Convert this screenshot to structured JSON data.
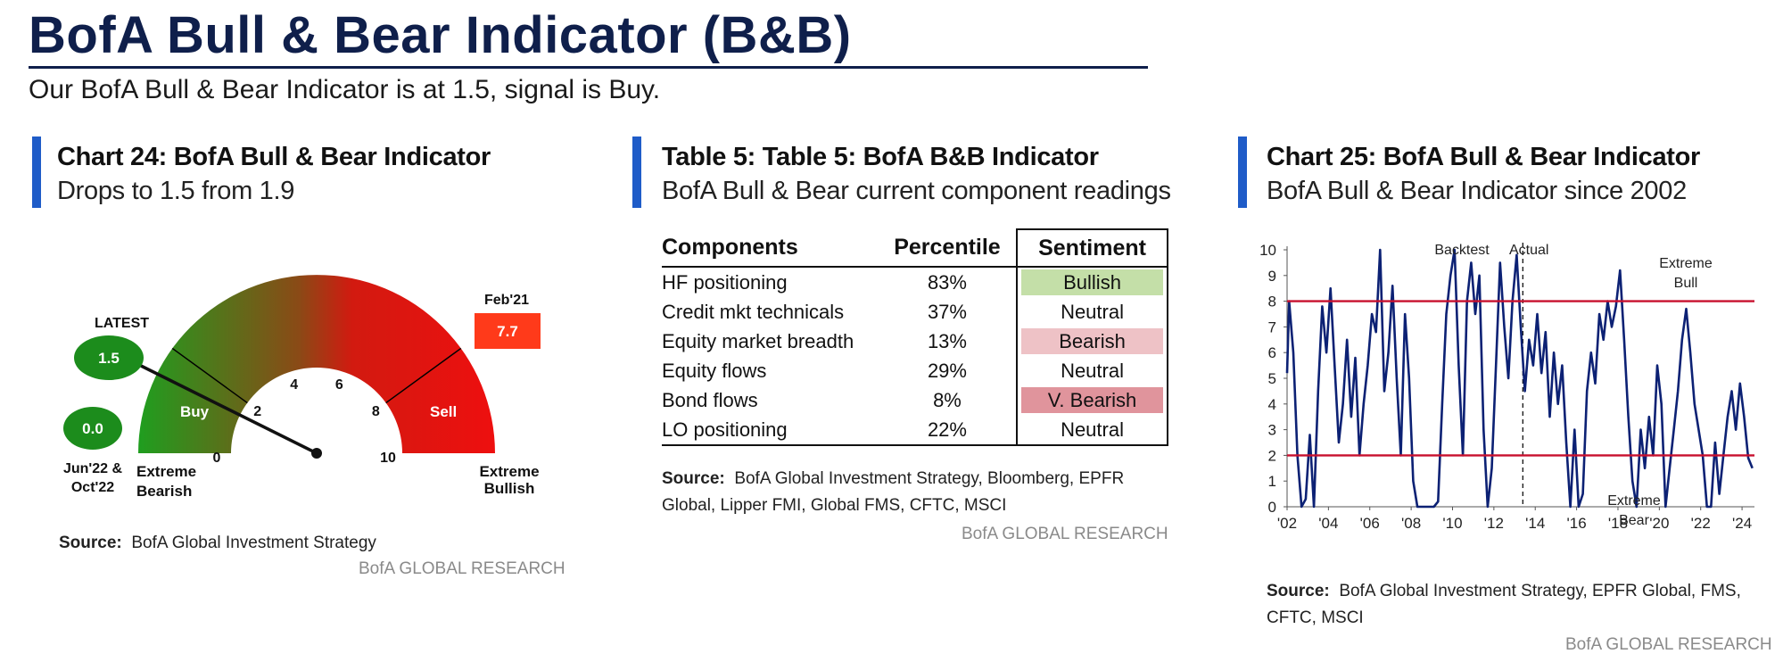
{
  "header": {
    "title": "BofA Bull & Bear Indicator (B&B)",
    "subtitle": "Our BofA Bull & Bear Indicator is at 1.5, signal is Buy."
  },
  "colors": {
    "navy": "#0f1f4b",
    "accent_bar": "#1f5cc8",
    "gauge_green": "#1f9e1f",
    "gauge_red": "#e81010",
    "bubble_green": "#1c8c1c",
    "feb_box": "#ff3a1a",
    "line_navy": "#0c2174",
    "threshold_red": "#c8102e",
    "bullish_fill": "#c4dfa8",
    "bearish_fill": "#eec2c6",
    "vbearish_fill": "#e0949c"
  },
  "left_panel": {
    "title": "Chart 24: BofA Bull & Bear Indicator",
    "subtitle": "Drops to 1.5 from 1.9",
    "latest_label": "LATEST",
    "latest_value": "1.5",
    "min_value": "0.0",
    "min_label_line1": "Jun'22 &",
    "min_label_line2": "Oct'22",
    "feb_label": "Feb'21",
    "feb_value": "7.7",
    "buy_label": "Buy",
    "sell_label": "Sell",
    "extreme_bearish_1": "Extreme",
    "extreme_bearish_2": "Bearish",
    "extreme_bullish_1": "Extreme",
    "extreme_bullish_2": "Bullish",
    "source_label": "Source:",
    "source_text": "BofA Global Investment Strategy",
    "research": "BofA GLOBAL RESEARCH"
  },
  "middle_panel": {
    "title": "Table 5: Table 5: BofA B&B Indicator",
    "subtitle": "BofA Bull & Bear current component readings",
    "headers": [
      "Components",
      "Percentile",
      "Sentiment"
    ],
    "rows": [
      {
        "component": "HF positioning",
        "percentile": "83%",
        "sentiment": "Bullish",
        "fill": "#c4dfa8"
      },
      {
        "component": "Credit mkt technicals",
        "percentile": "37%",
        "sentiment": "Neutral",
        "fill": ""
      },
      {
        "component": "Equity market breadth",
        "percentile": "13%",
        "sentiment": "Bearish",
        "fill": "#eec2c6"
      },
      {
        "component": "Equity flows",
        "percentile": "29%",
        "sentiment": "Neutral",
        "fill": ""
      },
      {
        "component": "Bond flows",
        "percentile": "8%",
        "sentiment": "V. Bearish",
        "fill": "#e0949c"
      },
      {
        "component": "LO positioning",
        "percentile": "22%",
        "sentiment": "Neutral",
        "fill": ""
      }
    ],
    "source_label": "Source:",
    "source_text_1": "BofA Global Investment Strategy, Bloomberg, EPFR",
    "source_text_2": "Global, Lipper FMI, Global FMS, CFTC, MSCI",
    "research": "BofA GLOBAL RESEARCH"
  },
  "right_panel": {
    "title": "Chart 25: BofA Bull & Bear Indicator",
    "subtitle": "BofA Bull & Bear Indicator since 2002",
    "annotations": {
      "backtest": "Backtest",
      "actual": "Actual",
      "extreme_bull_1": "Extreme",
      "extreme_bull_2": "Bull",
      "extreme_bear_1": "Extreme",
      "extreme_bear_2": "Bear"
    },
    "source_label": "Source:",
    "source_text_1": "BofA Global Investment Strategy, EPFR Global, FMS,",
    "source_text_2": "CFTC, MSCI",
    "research": "BofA GLOBAL RESEARCH"
  },
  "chart_data": [
    {
      "type": "gauge",
      "title": "Chart 24: BofA Bull & Bear Indicator",
      "range": [
        0,
        10
      ],
      "ticks": [
        "0",
        "2",
        "4",
        "6",
        "8",
        "10"
      ],
      "value": 1.5,
      "buy_threshold": 2,
      "sell_threshold": 8,
      "markers": [
        {
          "label": "LATEST",
          "value": 1.5
        },
        {
          "label": "Jun'22 & Oct'22",
          "value": 0.0
        },
        {
          "label": "Feb'21",
          "value": 7.7
        }
      ]
    },
    {
      "type": "line",
      "title": "Chart 25: BofA Bull & Bear Indicator",
      "x_ticks": [
        "'02",
        "'04",
        "'06",
        "'08",
        "'10",
        "'12",
        "'14",
        "'16",
        "'18",
        "'20",
        "'22",
        "'24"
      ],
      "x_tick_values": [
        2002,
        2004,
        2006,
        2008,
        2010,
        2012,
        2014,
        2016,
        2018,
        2020,
        2022,
        2024
      ],
      "y_ticks": [
        "0",
        "1",
        "2",
        "3",
        "4",
        "5",
        "6",
        "7",
        "8",
        "9",
        "10"
      ],
      "xlim": [
        2002,
        2024.6
      ],
      "ylim": [
        0,
        10
      ],
      "thresholds": [
        8,
        2
      ],
      "divider_x": 2013.4,
      "series": [
        {
          "x": [
            2002.0,
            2002.1,
            2002.3,
            2002.5,
            2002.7,
            2002.9,
            2003.1,
            2003.3,
            2003.5,
            2003.7,
            2003.9,
            2004.1,
            2004.3,
            2004.5,
            2004.7,
            2004.9,
            2005.1,
            2005.3,
            2005.5,
            2005.7,
            2005.9,
            2006.1,
            2006.3,
            2006.5,
            2006.7,
            2006.9,
            2007.1,
            2007.3,
            2007.5,
            2007.7,
            2007.9,
            2008.1,
            2008.3,
            2008.5,
            2008.7,
            2008.9,
            2009.1,
            2009.3,
            2009.5,
            2009.7,
            2009.9,
            2010.1,
            2010.3,
            2010.5,
            2010.7,
            2010.9,
            2011.1,
            2011.3,
            2011.5,
            2011.7,
            2011.9,
            2012.1,
            2012.3,
            2012.5,
            2012.7,
            2012.9,
            2013.1,
            2013.3,
            2013.5,
            2013.7,
            2013.9,
            2014.1,
            2014.3,
            2014.5,
            2014.7,
            2014.9,
            2015.1,
            2015.3,
            2015.5,
            2015.7,
            2015.9,
            2016.1,
            2016.3,
            2016.5,
            2016.7,
            2016.9,
            2017.1,
            2017.3,
            2017.5,
            2017.7,
            2017.9,
            2018.1,
            2018.3,
            2018.5,
            2018.7,
            2018.9,
            2019.1,
            2019.3,
            2019.5,
            2019.7,
            2019.9,
            2020.1,
            2020.3,
            2020.5,
            2020.7,
            2020.9,
            2021.1,
            2021.3,
            2021.5,
            2021.7,
            2021.9,
            2022.1,
            2022.3,
            2022.5,
            2022.7,
            2022.9,
            2023.1,
            2023.3,
            2023.5,
            2023.7,
            2023.9,
            2024.1,
            2024.3,
            2024.5
          ],
          "y": [
            5.2,
            8.0,
            6.0,
            2.0,
            0.0,
            0.3,
            2.8,
            0.0,
            4.5,
            7.8,
            6.0,
            8.5,
            5.5,
            2.5,
            4.0,
            6.5,
            3.5,
            5.8,
            2.0,
            4.0,
            5.5,
            7.5,
            6.8,
            10.0,
            4.5,
            6.0,
            8.6,
            5.0,
            2.0,
            7.5,
            5.0,
            1.0,
            0.0,
            0.0,
            0.0,
            0.0,
            0.0,
            0.2,
            4.0,
            7.5,
            9.0,
            10.0,
            5.5,
            2.0,
            8.0,
            9.5,
            7.5,
            9.0,
            3.0,
            0.0,
            1.5,
            5.5,
            9.5,
            7.0,
            5.0,
            8.0,
            9.8,
            7.0,
            4.5,
            6.5,
            5.5,
            7.5,
            5.2,
            6.8,
            3.5,
            6.0,
            4.0,
            5.5,
            2.5,
            0.0,
            3.0,
            0.0,
            0.5,
            4.5,
            6.0,
            4.8,
            7.5,
            6.5,
            8.0,
            7.0,
            7.8,
            9.2,
            6.5,
            3.5,
            1.0,
            0.0,
            3.0,
            1.5,
            3.5,
            2.0,
            5.5,
            4.0,
            0.0,
            1.5,
            3.0,
            4.5,
            6.5,
            7.7,
            6.0,
            4.0,
            3.0,
            2.0,
            0.0,
            0.0,
            2.5,
            0.5,
            2.0,
            3.5,
            4.5,
            3.0,
            4.8,
            3.5,
            1.9,
            1.5
          ]
        }
      ]
    }
  ]
}
